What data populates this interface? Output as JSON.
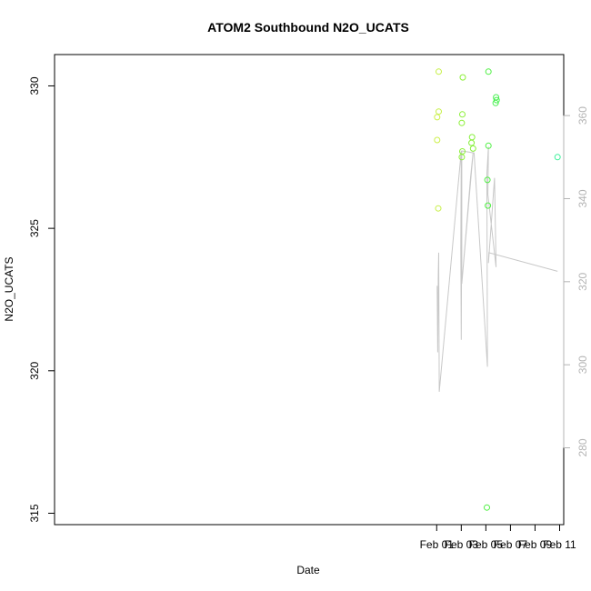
{
  "chart_data": {
    "type": "scatter",
    "title": "ATOM2 Southbound N2O_UCATS",
    "xlabel": "Date",
    "ylabel": "N2O_UCATS",
    "x_ticks": [
      {
        "value": "2017-02-01",
        "label": "Feb 01"
      },
      {
        "value": "2017-02-03",
        "label": "Feb 03"
      },
      {
        "value": "2017-02-05",
        "label": "Feb 05"
      },
      {
        "value": "2017-02-07",
        "label": "Feb 07"
      },
      {
        "value": "2017-02-09",
        "label": "Feb 09"
      },
      {
        "value": "2017-02-11",
        "label": "Feb 11"
      }
    ],
    "xlim": [
      "2016-12-31T22:00",
      "2017-02-11T08:00"
    ],
    "ylim": [
      314.6,
      331.1
    ],
    "y_ticks": [
      315,
      320,
      325,
      330
    ],
    "y2_ticks": [
      280,
      300,
      320,
      340,
      360
    ],
    "y2lim": [
      261.5,
      374.7
    ],
    "points_series": {
      "name": "N2O_UCATS",
      "marker": "open-circle",
      "points": [
        {
          "x": "2017-02-01T01:00",
          "y": 328.9,
          "color": "#ccf04a"
        },
        {
          "x": "2017-02-01T01:00",
          "y": 328.1,
          "color": "#ccf04a"
        },
        {
          "x": "2017-02-01T04:00",
          "y": 329.1,
          "color": "#c6f046"
        },
        {
          "x": "2017-02-01T04:00",
          "y": 330.5,
          "color": "#c6f046"
        },
        {
          "x": "2017-02-01T03:00",
          "y": 325.7,
          "color": "#c8f048"
        },
        {
          "x": "2017-02-03T01:00",
          "y": 328.7,
          "color": "#8cf038"
        },
        {
          "x": "2017-02-03T02:00",
          "y": 329.0,
          "color": "#8cf038"
        },
        {
          "x": "2017-02-03T03:00",
          "y": 330.3,
          "color": "#8cf038"
        },
        {
          "x": "2017-02-03T02:00",
          "y": 327.7,
          "color": "#8cf038"
        },
        {
          "x": "2017-02-03T01:00",
          "y": 327.5,
          "color": "#8cf038"
        },
        {
          "x": "2017-02-03T21:00",
          "y": 328.2,
          "color": "#86f03a"
        },
        {
          "x": "2017-02-03T20:00",
          "y": 328.0,
          "color": "#86f03a"
        },
        {
          "x": "2017-02-03T23:00",
          "y": 327.8,
          "color": "#86f03a"
        },
        {
          "x": "2017-02-05T05:00",
          "y": 330.5,
          "color": "#50f044"
        },
        {
          "x": "2017-02-05T05:00",
          "y": 327.9,
          "color": "#50f044"
        },
        {
          "x": "2017-02-05T03:00",
          "y": 326.7,
          "color": "#50f044"
        },
        {
          "x": "2017-02-05T04:00",
          "y": 325.8,
          "color": "#50f044"
        },
        {
          "x": "2017-02-05T02:00",
          "y": 315.2,
          "color": "#50f044"
        },
        {
          "x": "2017-02-05T20:00",
          "y": 329.6,
          "color": "#48f050"
        },
        {
          "x": "2017-02-05T21:00",
          "y": 329.5,
          "color": "#48f050"
        },
        {
          "x": "2017-02-05T19:00",
          "y": 329.4,
          "color": "#48f050"
        },
        {
          "x": "2017-02-10T20:00",
          "y": 327.5,
          "color": "#3cf09a"
        }
      ]
    },
    "line_series": {
      "name": "secondary",
      "axis": "right",
      "color": "#c8c8c8",
      "points": [
        {
          "x": "2017-02-01T01:00",
          "y": 319.0
        },
        {
          "x": "2017-02-01T02:00",
          "y": 303.0
        },
        {
          "x": "2017-02-01T03:00",
          "y": 321.5
        },
        {
          "x": "2017-02-01T04:00",
          "y": 327.0
        },
        {
          "x": "2017-02-01T05:00",
          "y": 293.5
        },
        {
          "x": "2017-02-03T00:00",
          "y": 351.5
        },
        {
          "x": "2017-02-02T23:00",
          "y": 328.0
        },
        {
          "x": "2017-02-03T00:00",
          "y": 306.0
        },
        {
          "x": "2017-02-03T01:00",
          "y": 340.5
        },
        {
          "x": "2017-02-03T01:00",
          "y": 319.5
        },
        {
          "x": "2017-02-03T23:00",
          "y": 351.0
        },
        {
          "x": "2017-02-03T18:00",
          "y": 345.0
        },
        {
          "x": "2017-02-03T01:00",
          "y": 319.5
        },
        {
          "x": "2017-02-03T01:00",
          "y": 351.5
        },
        {
          "x": "2017-02-04T01:00",
          "y": 351.0
        },
        {
          "x": "2017-02-05T03:00",
          "y": 299.5
        },
        {
          "x": "2017-02-05T02:00",
          "y": 346.0
        },
        {
          "x": "2017-02-05T05:00",
          "y": 352.5
        },
        {
          "x": "2017-02-05T04:00",
          "y": 341.0
        },
        {
          "x": "2017-02-05T20:00",
          "y": 323.5
        },
        {
          "x": "2017-02-05T17:00",
          "y": 345.0
        },
        {
          "x": "2017-02-05T05:00",
          "y": 324.5
        },
        {
          "x": "2017-02-05T06:00",
          "y": 327.0
        },
        {
          "x": "2017-02-10T20:00",
          "y": 322.5
        }
      ]
    }
  }
}
